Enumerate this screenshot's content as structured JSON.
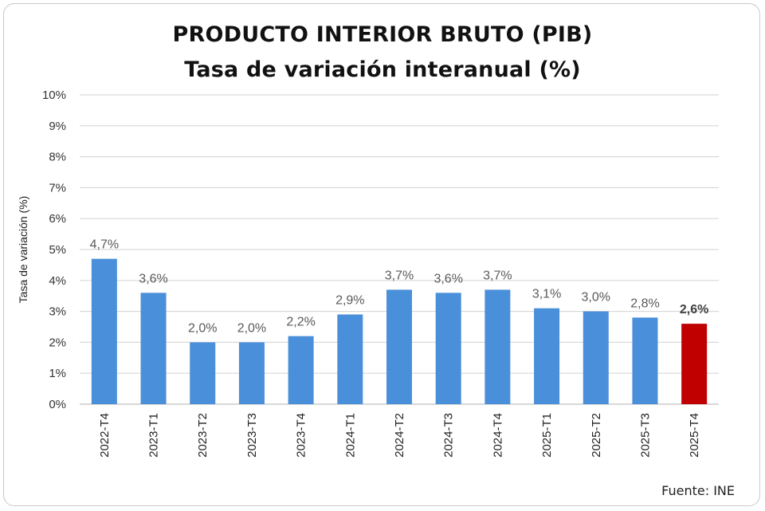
{
  "chart_data": {
    "type": "bar",
    "title": "PRODUCTO INTERIOR BRUTO (PIB)",
    "subtitle": "Tasa de variación interanual (%)",
    "ylabel": "Tasa de variación (%)",
    "xlabel": "",
    "ylim": [
      0,
      10
    ],
    "yticks": [
      "0%",
      "1%",
      "2%",
      "3%",
      "4%",
      "5%",
      "6%",
      "7%",
      "8%",
      "9%",
      "10%"
    ],
    "grid": true,
    "categories": [
      "2022-T4",
      "2023-T1",
      "2023-T2",
      "2023-T3",
      "2023-T4",
      "2024-T1",
      "2024-T2",
      "2024-T3",
      "2024-T4",
      "2025-T1",
      "2025-T2",
      "2025-T3",
      "2025-T4"
    ],
    "values": [
      4.7,
      3.6,
      2.0,
      2.0,
      2.2,
      2.9,
      3.7,
      3.6,
      3.7,
      3.1,
      3.0,
      2.8,
      2.6
    ],
    "labels": [
      "4,7%",
      "3,6%",
      "2,0%",
      "2,0%",
      "2,2%",
      "2,9%",
      "3,7%",
      "3,6%",
      "3,7%",
      "3,1%",
      "3,0%",
      "2,8%",
      "2,6%"
    ],
    "highlight_index": 12,
    "colors": {
      "bar": "#4a8fd9",
      "highlight": "#c00000",
      "grid": "#d9d9d9",
      "label": "#595959"
    },
    "source": "Fuente: INE"
  }
}
